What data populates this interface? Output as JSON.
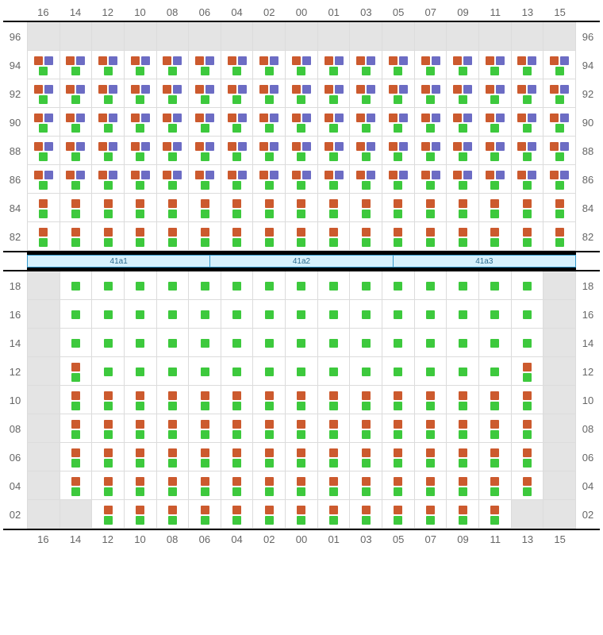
{
  "colors": {
    "orange": "#cc5a2e",
    "purple": "#6c6cc4",
    "green": "#3dc93d",
    "gray_cell": "#e4e4e4",
    "grid_line": "#dcdcdc",
    "segment_bg": "#d6f0fb",
    "segment_border": "#3399cc"
  },
  "columns": [
    "16",
    "14",
    "12",
    "10",
    "08",
    "06",
    "04",
    "02",
    "00",
    "01",
    "03",
    "05",
    "07",
    "09",
    "11",
    "13",
    "15"
  ],
  "top_block": {
    "rows": [
      {
        "label": "96",
        "pattern": "blank"
      },
      {
        "label": "94",
        "pattern": "op_g"
      },
      {
        "label": "92",
        "pattern": "op_g"
      },
      {
        "label": "90",
        "pattern": "op_g"
      },
      {
        "label": "88",
        "pattern": "op_g"
      },
      {
        "label": "86",
        "pattern": "op_g"
      },
      {
        "label": "84",
        "pattern": "o_g"
      },
      {
        "label": "82",
        "pattern": "o_g"
      }
    ]
  },
  "segments": [
    {
      "label": "41a1"
    },
    {
      "label": "41a2"
    },
    {
      "label": "41a3"
    }
  ],
  "bottom_block": {
    "rows": [
      {
        "label": "18",
        "cells": [
          {
            "bg": "gray"
          },
          {
            "p": "g",
            "bg": "white"
          },
          {
            "p": "g",
            "bg": "white"
          },
          {
            "p": "g",
            "bg": "white"
          },
          {
            "p": "g",
            "bg": "white"
          },
          {
            "p": "g",
            "bg": "white"
          },
          {
            "p": "g",
            "bg": "white"
          },
          {
            "p": "g",
            "bg": "white"
          },
          {
            "p": "g",
            "bg": "white"
          },
          {
            "p": "g",
            "bg": "white"
          },
          {
            "p": "g",
            "bg": "white"
          },
          {
            "p": "g",
            "bg": "white"
          },
          {
            "p": "g",
            "bg": "white"
          },
          {
            "p": "g",
            "bg": "white"
          },
          {
            "p": "g",
            "bg": "white"
          },
          {
            "p": "g",
            "bg": "white"
          },
          {
            "bg": "gray"
          }
        ]
      },
      {
        "label": "16",
        "cells": [
          {
            "bg": "gray"
          },
          {
            "p": "g",
            "bg": "white"
          },
          {
            "p": "g",
            "bg": "white"
          },
          {
            "p": "g",
            "bg": "white"
          },
          {
            "p": "g",
            "bg": "white"
          },
          {
            "p": "g",
            "bg": "white"
          },
          {
            "p": "g",
            "bg": "white"
          },
          {
            "p": "g",
            "bg": "white"
          },
          {
            "p": "g",
            "bg": "white"
          },
          {
            "p": "g",
            "bg": "white"
          },
          {
            "p": "g",
            "bg": "white"
          },
          {
            "p": "g",
            "bg": "white"
          },
          {
            "p": "g",
            "bg": "white"
          },
          {
            "p": "g",
            "bg": "white"
          },
          {
            "p": "g",
            "bg": "white"
          },
          {
            "p": "g",
            "bg": "white"
          },
          {
            "bg": "gray"
          }
        ]
      },
      {
        "label": "14",
        "cells": [
          {
            "bg": "gray"
          },
          {
            "p": "g",
            "bg": "white"
          },
          {
            "p": "g",
            "bg": "white"
          },
          {
            "p": "g",
            "bg": "white"
          },
          {
            "p": "g",
            "bg": "white"
          },
          {
            "p": "g",
            "bg": "white"
          },
          {
            "p": "g",
            "bg": "white"
          },
          {
            "p": "g",
            "bg": "white"
          },
          {
            "p": "g",
            "bg": "white"
          },
          {
            "p": "g",
            "bg": "white"
          },
          {
            "p": "g",
            "bg": "white"
          },
          {
            "p": "g",
            "bg": "white"
          },
          {
            "p": "g",
            "bg": "white"
          },
          {
            "p": "g",
            "bg": "white"
          },
          {
            "p": "g",
            "bg": "white"
          },
          {
            "p": "g",
            "bg": "white"
          },
          {
            "bg": "gray"
          }
        ]
      },
      {
        "label": "12",
        "cells": [
          {
            "bg": "gray"
          },
          {
            "p": "o_g",
            "bg": "white"
          },
          {
            "p": "g",
            "bg": "white"
          },
          {
            "p": "g",
            "bg": "white"
          },
          {
            "p": "g",
            "bg": "white"
          },
          {
            "p": "g",
            "bg": "white"
          },
          {
            "p": "g",
            "bg": "white"
          },
          {
            "p": "g",
            "bg": "white"
          },
          {
            "p": "g",
            "bg": "white"
          },
          {
            "p": "g",
            "bg": "white"
          },
          {
            "p": "g",
            "bg": "white"
          },
          {
            "p": "g",
            "bg": "white"
          },
          {
            "p": "g",
            "bg": "white"
          },
          {
            "p": "g",
            "bg": "white"
          },
          {
            "p": "g",
            "bg": "white"
          },
          {
            "p": "o_g",
            "bg": "white"
          },
          {
            "bg": "gray"
          }
        ]
      },
      {
        "label": "10",
        "cells": [
          {
            "bg": "gray"
          },
          {
            "p": "o_g",
            "bg": "white"
          },
          {
            "p": "o_g",
            "bg": "white"
          },
          {
            "p": "o_g",
            "bg": "white"
          },
          {
            "p": "o_g",
            "bg": "white"
          },
          {
            "p": "o_g",
            "bg": "white"
          },
          {
            "p": "o_g",
            "bg": "white"
          },
          {
            "p": "o_g",
            "bg": "white"
          },
          {
            "p": "o_g",
            "bg": "white"
          },
          {
            "p": "o_g",
            "bg": "white"
          },
          {
            "p": "o_g",
            "bg": "white"
          },
          {
            "p": "o_g",
            "bg": "white"
          },
          {
            "p": "o_g",
            "bg": "white"
          },
          {
            "p": "o_g",
            "bg": "white"
          },
          {
            "p": "o_g",
            "bg": "white"
          },
          {
            "p": "o_g",
            "bg": "white"
          },
          {
            "bg": "gray"
          }
        ]
      },
      {
        "label": "08",
        "cells": [
          {
            "bg": "gray"
          },
          {
            "p": "o_g",
            "bg": "white"
          },
          {
            "p": "o_g",
            "bg": "white"
          },
          {
            "p": "o_g",
            "bg": "white"
          },
          {
            "p": "o_g",
            "bg": "white"
          },
          {
            "p": "o_g",
            "bg": "white"
          },
          {
            "p": "o_g",
            "bg": "white"
          },
          {
            "p": "o_g",
            "bg": "white"
          },
          {
            "p": "o_g",
            "bg": "white"
          },
          {
            "p": "o_g",
            "bg": "white"
          },
          {
            "p": "o_g",
            "bg": "white"
          },
          {
            "p": "o_g",
            "bg": "white"
          },
          {
            "p": "o_g",
            "bg": "white"
          },
          {
            "p": "o_g",
            "bg": "white"
          },
          {
            "p": "o_g",
            "bg": "white"
          },
          {
            "p": "o_g",
            "bg": "white"
          },
          {
            "bg": "gray"
          }
        ]
      },
      {
        "label": "06",
        "cells": [
          {
            "bg": "gray"
          },
          {
            "p": "o_g",
            "bg": "white"
          },
          {
            "p": "o_g",
            "bg": "white"
          },
          {
            "p": "o_g",
            "bg": "white"
          },
          {
            "p": "o_g",
            "bg": "white"
          },
          {
            "p": "o_g",
            "bg": "white"
          },
          {
            "p": "o_g",
            "bg": "white"
          },
          {
            "p": "o_g",
            "bg": "white"
          },
          {
            "p": "o_g",
            "bg": "white"
          },
          {
            "p": "o_g",
            "bg": "white"
          },
          {
            "p": "o_g",
            "bg": "white"
          },
          {
            "p": "o_g",
            "bg": "white"
          },
          {
            "p": "o_g",
            "bg": "white"
          },
          {
            "p": "o_g",
            "bg": "white"
          },
          {
            "p": "o_g",
            "bg": "white"
          },
          {
            "p": "o_g",
            "bg": "white"
          },
          {
            "bg": "gray"
          }
        ]
      },
      {
        "label": "04",
        "cells": [
          {
            "bg": "gray"
          },
          {
            "p": "o_g",
            "bg": "white"
          },
          {
            "p": "o_g",
            "bg": "white"
          },
          {
            "p": "o_g",
            "bg": "white"
          },
          {
            "p": "o_g",
            "bg": "white"
          },
          {
            "p": "o_g",
            "bg": "white"
          },
          {
            "p": "o_g",
            "bg": "white"
          },
          {
            "p": "o_g",
            "bg": "white"
          },
          {
            "p": "o_g",
            "bg": "white"
          },
          {
            "p": "o_g",
            "bg": "white"
          },
          {
            "p": "o_g",
            "bg": "white"
          },
          {
            "p": "o_g",
            "bg": "white"
          },
          {
            "p": "o_g",
            "bg": "white"
          },
          {
            "p": "o_g",
            "bg": "white"
          },
          {
            "p": "o_g",
            "bg": "white"
          },
          {
            "p": "o_g",
            "bg": "white"
          },
          {
            "bg": "gray"
          }
        ]
      },
      {
        "label": "02",
        "cells": [
          {
            "bg": "gray"
          },
          {
            "bg": "gray"
          },
          {
            "p": "o_g",
            "bg": "white"
          },
          {
            "p": "o_g",
            "bg": "white"
          },
          {
            "p": "o_g",
            "bg": "white"
          },
          {
            "p": "o_g",
            "bg": "white"
          },
          {
            "p": "o_g",
            "bg": "white"
          },
          {
            "p": "o_g",
            "bg": "white"
          },
          {
            "p": "o_g",
            "bg": "white"
          },
          {
            "p": "o_g",
            "bg": "white"
          },
          {
            "p": "o_g",
            "bg": "white"
          },
          {
            "p": "o_g",
            "bg": "white"
          },
          {
            "p": "o_g",
            "bg": "white"
          },
          {
            "p": "o_g",
            "bg": "white"
          },
          {
            "p": "o_g",
            "bg": "white"
          },
          {
            "bg": "gray"
          },
          {
            "bg": "gray"
          }
        ]
      }
    ]
  }
}
